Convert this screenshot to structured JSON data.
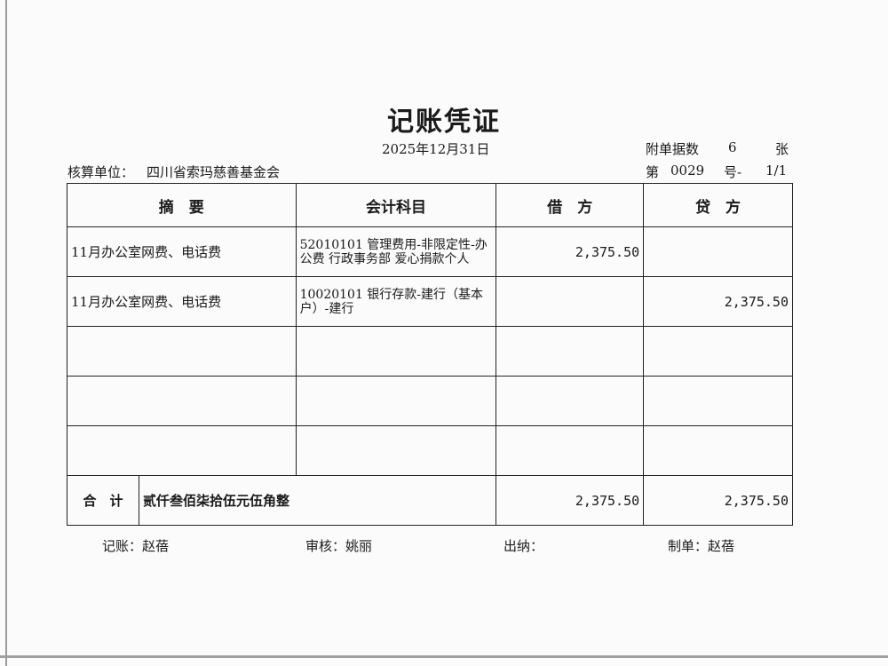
{
  "voucher": {
    "title": "记账凭证",
    "date": "2025年12月31日",
    "attachments_label": "附单据数",
    "attachments_count": "6",
    "attachments_unit": "张",
    "unit_label": "核算单位：",
    "unit_name": "四川省索玛慈善基金会",
    "number_prefix": "第",
    "number": "0029",
    "number_suffix": "号-",
    "page": "1/1"
  },
  "table": {
    "headers": [
      "摘　要",
      "会计科目",
      "借　方",
      "贷　方"
    ],
    "rows": [
      {
        "summary": "11月办公室网费、电话费",
        "account": "52010101 管理费用-非限定性-办公费 行政事务部 爱心捐款个人",
        "debit": "2,375.50",
        "credit": ""
      },
      {
        "summary": "11月办公室网费、电话费",
        "account": "10020101 银行存款-建行（基本户）-建行",
        "debit": "",
        "credit": "2,375.50"
      },
      {
        "summary": "",
        "account": "",
        "debit": "",
        "credit": ""
      },
      {
        "summary": "",
        "account": "",
        "debit": "",
        "credit": ""
      },
      {
        "summary": "",
        "account": "",
        "debit": "",
        "credit": ""
      }
    ],
    "total": {
      "label": "合　计",
      "words": "贰仟叁佰柒拾伍元伍角整",
      "debit": "2,375.50",
      "credit": "2,375.50"
    }
  },
  "signatures": {
    "bookkeeper": "记账：赵蓓",
    "reviewer": "审核：姚丽",
    "cashier": "出纳：",
    "preparer": "制单：赵蓓"
  }
}
